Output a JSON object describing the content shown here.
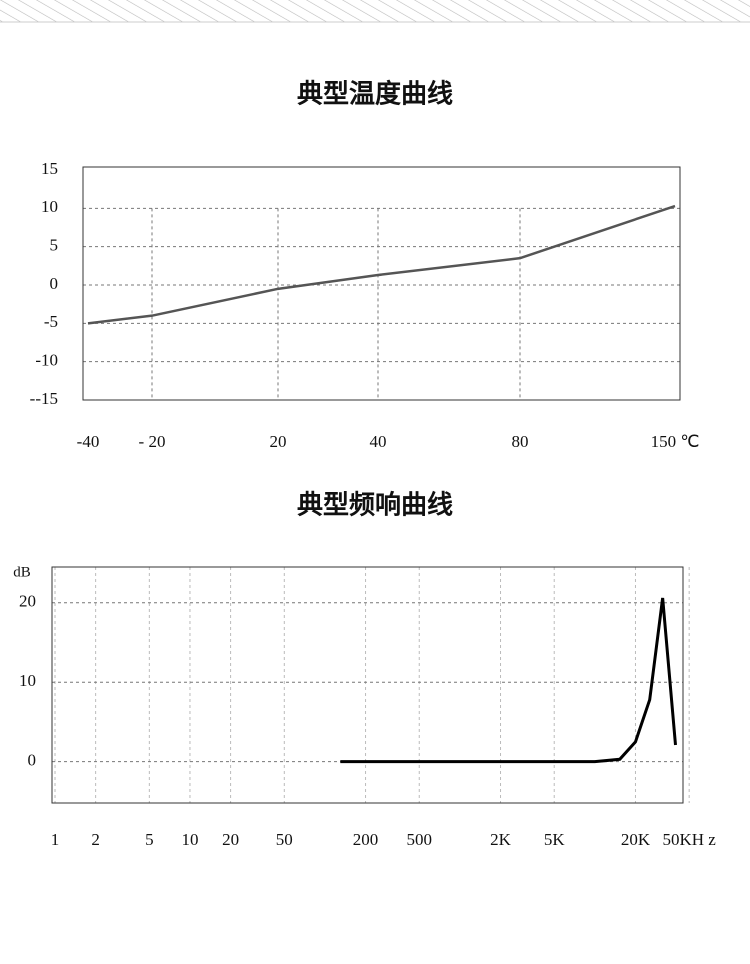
{
  "chart_data": [
    {
      "type": "line",
      "title": "典型温度曲线",
      "categories": [
        "-40",
        "- 20",
        "20",
        "40",
        "80",
        "150 ℃"
      ],
      "values": [
        -5,
        -4,
        -0.5,
        1.3,
        3.5,
        10.3
      ],
      "color": "#555555",
      "ylim": [
        -15,
        15
      ],
      "yticks": [
        15,
        10,
        5,
        0,
        -5,
        -10,
        {
          "value": -15,
          "label": "--15"
        }
      ],
      "grid": true
    },
    {
      "type": "line",
      "title": "典型频响曲线",
      "y_label": "dB",
      "xscale": "log",
      "x": [
        130,
        1000,
        10000,
        15300,
        20000,
        25500,
        31800,
        39600
      ],
      "values": [
        0,
        0,
        0,
        0.3,
        2.5,
        7.8,
        20.6,
        2.1
      ],
      "color": "#000000",
      "xlim": [
        0.95,
        45000
      ],
      "xticks": [
        1,
        2,
        5,
        10,
        20,
        50,
        200,
        500,
        {
          "value": 2000,
          "label": "2K"
        },
        {
          "value": 5000,
          "label": "5K"
        },
        {
          "value": 20000,
          "label": "20K"
        },
        {
          "value": 50000,
          "label": "50KH z"
        }
      ],
      "ylim": [
        -5.2,
        24.5
      ],
      "yticks": [
        0,
        10,
        20
      ],
      "grid": true
    }
  ]
}
